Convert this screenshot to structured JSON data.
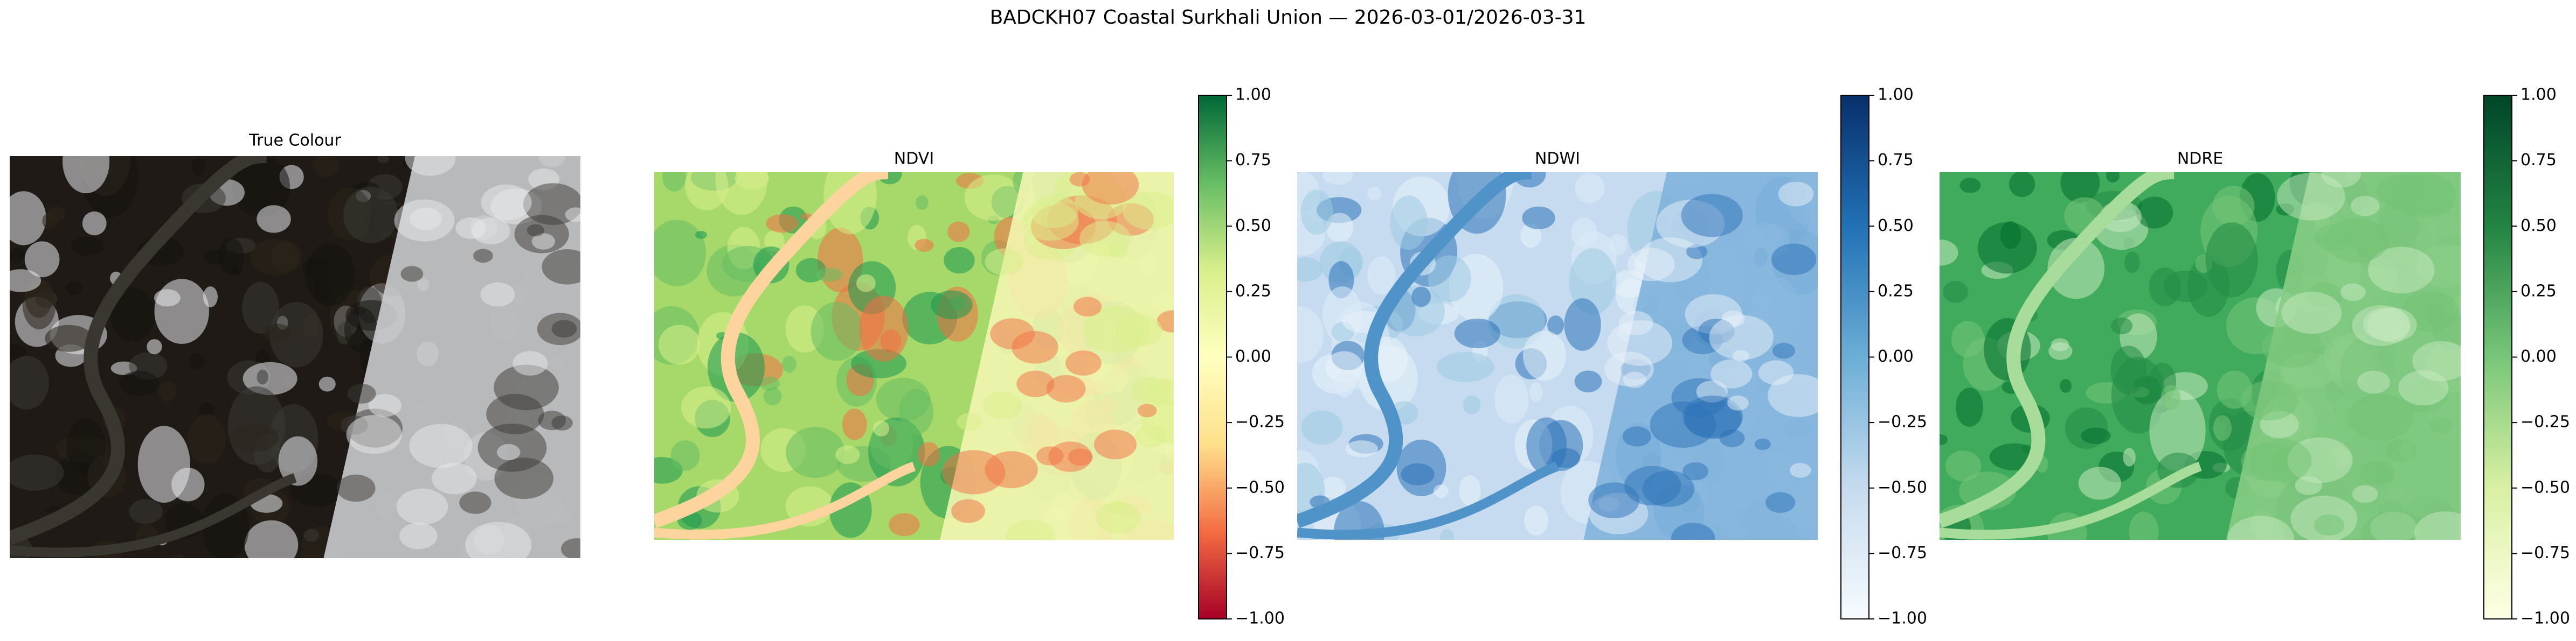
{
  "title": "BADCKH07 Coastal Surkhali Union — 2026-03-01/2026-03-31",
  "chart_data": [
    {
      "type": "image",
      "title": "True Colour"
    },
    {
      "type": "image",
      "title": "NDVI",
      "colorbar": {
        "colors": [
          "#a50026",
          "#f46d43",
          "#fee08b",
          "#ffffbf",
          "#d9ef8b",
          "#66bd63",
          "#006837"
        ],
        "ylim": [
          -1,
          1
        ],
        "yticks": [
          {
            "value": -1,
            "label": "−1.00"
          },
          {
            "value": -0.75,
            "label": "−0.75"
          },
          {
            "value": -0.5,
            "label": "−0.50"
          },
          {
            "value": -0.25,
            "label": "−0.25"
          },
          {
            "value": 0,
            "label": "0.00"
          },
          {
            "value": 0.25,
            "label": "0.25"
          },
          {
            "value": 0.5,
            "label": "0.50"
          },
          {
            "value": 0.75,
            "label": "0.75"
          },
          {
            "value": 1,
            "label": "1.00"
          }
        ]
      }
    },
    {
      "type": "image",
      "title": "NDWI",
      "colorbar": {
        "colors": [
          "#f7fbff",
          "#c6dbef",
          "#6baed6",
          "#2171b5",
          "#08306b"
        ],
        "ylim": [
          -1,
          1
        ],
        "yticks": [
          {
            "value": -1,
            "label": "−1.00"
          },
          {
            "value": -0.75,
            "label": "−0.75"
          },
          {
            "value": -0.5,
            "label": "−0.50"
          },
          {
            "value": -0.25,
            "label": "−0.25"
          },
          {
            "value": 0,
            "label": "0.00"
          },
          {
            "value": 0.25,
            "label": "0.25"
          },
          {
            "value": 0.5,
            "label": "0.50"
          },
          {
            "value": 0.75,
            "label": "0.75"
          },
          {
            "value": 1,
            "label": "1.00"
          }
        ]
      }
    },
    {
      "type": "image",
      "title": "NDRE",
      "colorbar": {
        "colors": [
          "#ffffe5",
          "#d9f0a3",
          "#78c679",
          "#238443",
          "#004529"
        ],
        "ylim": [
          -1,
          1
        ],
        "yticks": [
          {
            "value": -1,
            "label": "−1.00"
          },
          {
            "value": -0.75,
            "label": "−0.75"
          },
          {
            "value": -0.5,
            "label": "−0.50"
          },
          {
            "value": -0.25,
            "label": "−0.25"
          },
          {
            "value": 0,
            "label": "0.00"
          },
          {
            "value": 0.25,
            "label": "0.25"
          },
          {
            "value": 0.5,
            "label": "0.50"
          },
          {
            "value": 0.75,
            "label": "0.75"
          },
          {
            "value": 1,
            "label": "1.00"
          }
        ]
      }
    }
  ]
}
